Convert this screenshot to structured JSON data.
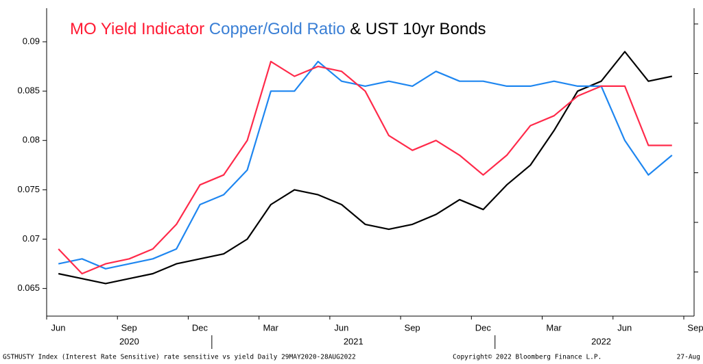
{
  "chart_data": {
    "type": "line",
    "title": [
      {
        "text": "MO Yield Indicator",
        "color": "#ff1a33"
      },
      {
        "text": "Copper/Gold Ratio",
        "color": "#3a7fd5"
      },
      {
        "text": "& UST 10yr Bonds",
        "color": "#000000"
      }
    ],
    "x": [
      "2020-06",
      "2020-07",
      "2020-08",
      "2020-09",
      "2020-10",
      "2020-11",
      "2020-12",
      "2021-01",
      "2021-02",
      "2021-03",
      "2021-04",
      "2021-05",
      "2021-06",
      "2021-07",
      "2021-08",
      "2021-09",
      "2021-10",
      "2021-11",
      "2021-12",
      "2022-01",
      "2022-02",
      "2022-03",
      "2022-04",
      "2022-05",
      "2022-06",
      "2022-07",
      "2022-08"
    ],
    "xlim": [
      "2020-06",
      "2022-09"
    ],
    "xticks": [
      {
        "value": "2020-06",
        "label": "Jun"
      },
      {
        "value": "2020-09",
        "label": "Sep"
      },
      {
        "value": "2020-12",
        "label": "Dec"
      },
      {
        "value": "2021-03",
        "label": "Mar"
      },
      {
        "value": "2021-06",
        "label": "Jun"
      },
      {
        "value": "2021-09",
        "label": "Sep"
      },
      {
        "value": "2021-12",
        "label": "Dec"
      },
      {
        "value": "2022-03",
        "label": "Mar"
      },
      {
        "value": "2022-06",
        "label": "Jun"
      },
      {
        "value": "2022-09",
        "label": "Sep"
      }
    ],
    "years": [
      "2020",
      "2021",
      "2022"
    ],
    "ylim": [
      0.0622,
      0.0934
    ],
    "yticks": [
      0.065,
      0.07,
      0.075,
      0.08,
      0.085,
      0.09
    ],
    "series": [
      {
        "name": "MO Yield Indicator",
        "color": "#ff2a4a",
        "values": [
          0.069,
          0.0665,
          0.0675,
          0.068,
          0.069,
          0.0715,
          0.0755,
          0.0765,
          0.08,
          0.088,
          0.0865,
          0.0875,
          0.087,
          0.085,
          0.0805,
          0.079,
          0.08,
          0.0785,
          0.0765,
          0.0785,
          0.0815,
          0.0825,
          0.0845,
          0.0855,
          0.0855,
          0.0795,
          0.0795
        ]
      },
      {
        "name": "Copper/Gold Ratio",
        "color": "#1e86f0",
        "values": [
          0.0675,
          0.068,
          0.067,
          0.0675,
          0.068,
          0.069,
          0.0735,
          0.0745,
          0.077,
          0.085,
          0.085,
          0.088,
          0.086,
          0.0855,
          0.086,
          0.0855,
          0.087,
          0.086,
          0.086,
          0.0855,
          0.0855,
          0.086,
          0.0855,
          0.0855,
          0.08,
          0.0765,
          0.0785
        ]
      },
      {
        "name": "UST 10yr Bonds",
        "color": "#000000",
        "values": [
          0.0665,
          0.066,
          0.0655,
          0.066,
          0.0665,
          0.0675,
          0.068,
          0.0685,
          0.07,
          0.0735,
          0.075,
          0.0745,
          0.0735,
          0.0715,
          0.071,
          0.0715,
          0.0725,
          0.074,
          0.073,
          0.0755,
          0.0775,
          0.081,
          0.085,
          0.086,
          0.089,
          0.086,
          0.0865
        ]
      }
    ],
    "footer": {
      "source": "GSTHUSTY Index (Interest Rate Sensitive) rate sensitive vs yield  Daily 29MAY2020-28AUG2022",
      "copyright": "Copyright© 2022 Bloomberg Finance L.P.",
      "date": "27-Aug"
    }
  }
}
